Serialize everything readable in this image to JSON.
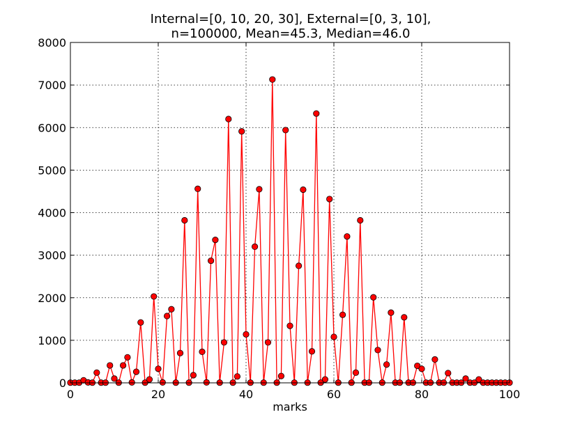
{
  "chart_data": {
    "type": "line",
    "title_lines": [
      "Internal=[0, 10, 20, 30], External=[0, 3, 10],",
      "n=100000, Mean=45.3, Median=46.0"
    ],
    "xlabel": "marks",
    "ylabel": "",
    "xlim": [
      0,
      100
    ],
    "ylim": [
      0,
      8000
    ],
    "xticks": [
      0,
      20,
      40,
      60,
      80,
      100
    ],
    "yticks": [
      0,
      1000,
      2000,
      3000,
      4000,
      5000,
      6000,
      7000,
      8000
    ],
    "grid": true,
    "series_color": "#ff0000",
    "marker_edge_color": "#000000",
    "x": [
      0,
      1,
      2,
      3,
      4,
      5,
      6,
      7,
      8,
      9,
      10,
      11,
      12,
      13,
      14,
      15,
      16,
      17,
      18,
      19,
      20,
      21,
      22,
      23,
      24,
      25,
      26,
      27,
      28,
      29,
      30,
      31,
      32,
      33,
      34,
      35,
      36,
      37,
      38,
      39,
      40,
      41,
      42,
      43,
      44,
      45,
      46,
      47,
      48,
      49,
      50,
      51,
      52,
      53,
      54,
      55,
      56,
      57,
      58,
      59,
      60,
      61,
      62,
      63,
      64,
      65,
      66,
      67,
      68,
      69,
      70,
      71,
      72,
      73,
      74,
      75,
      76,
      77,
      78,
      79,
      80,
      81,
      82,
      83,
      84,
      85,
      86,
      87,
      88,
      89,
      90,
      91,
      92,
      93,
      94,
      95,
      96,
      97,
      98,
      99,
      100
    ],
    "y": [
      5,
      5,
      5,
      60,
      10,
      5,
      240,
      5,
      5,
      410,
      100,
      5,
      410,
      600,
      10,
      260,
      1420,
      5,
      80,
      2030,
      330,
      10,
      1570,
      1730,
      5,
      700,
      3820,
      5,
      180,
      4560,
      730,
      10,
      2870,
      3360,
      5,
      950,
      6200,
      5,
      150,
      5910,
      1140,
      5,
      3200,
      4550,
      5,
      950,
      7130,
      5,
      160,
      5940,
      1340,
      5,
      2750,
      4540,
      5,
      740,
      6330,
      5,
      80,
      4320,
      1080,
      5,
      1600,
      3440,
      5,
      240,
      3820,
      5,
      5,
      2010,
      770,
      5,
      430,
      1650,
      5,
      5,
      1540,
      5,
      5,
      400,
      330,
      5,
      5,
      550,
      5,
      5,
      230,
      5,
      5,
      5,
      100,
      5,
      5,
      80,
      5,
      5,
      5,
      5,
      5,
      5,
      5
    ]
  }
}
